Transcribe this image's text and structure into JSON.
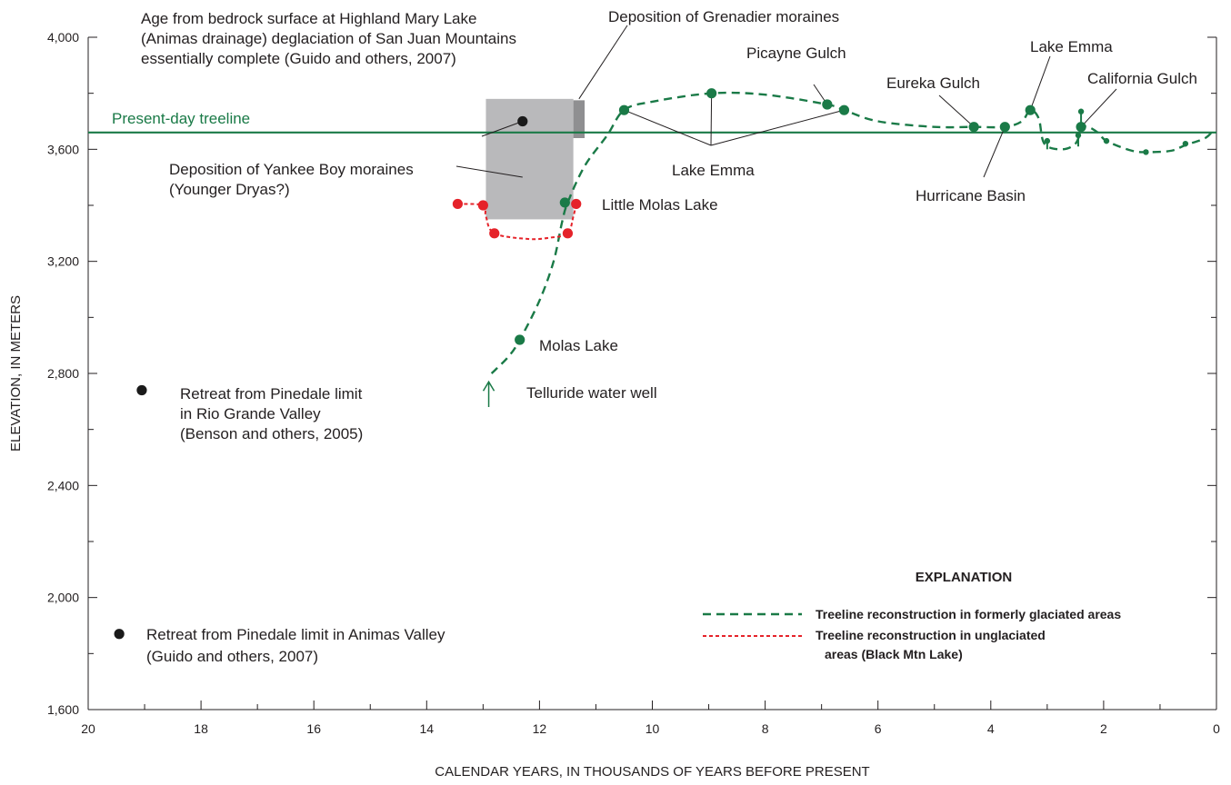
{
  "chart_data": {
    "type": "line",
    "xlabel": "CALENDAR YEARS, IN THOUSANDS OF YEARS BEFORE PRESENT",
    "ylabel": "ELEVATION, IN METERS",
    "xlim": [
      20,
      0
    ],
    "ylim": [
      1600,
      4000
    ],
    "x_major_ticks": [
      "20",
      "18",
      "16",
      "14",
      "12",
      "10",
      "8",
      "6",
      "4",
      "2",
      "0"
    ],
    "y_major_ticks": [
      "1,600",
      "2,000",
      "2,400",
      "2,800",
      "3,200",
      "3,600",
      "4,000"
    ],
    "colors": {
      "glaciated": "#1a7a47",
      "unglaciated": "#e5232a",
      "present_treeline": "#1a7a47",
      "box_light": "#b9b9bb",
      "box_dark": "#8f8f91",
      "marker_black": "#1a1a1a"
    },
    "present_treeline": {
      "y": 3660,
      "label": "Present-day treeline"
    },
    "series": [
      {
        "key": "glaciated",
        "line_points": [
          {
            "x": 12.85,
            "y": 2800
          },
          {
            "x": 12.55,
            "y": 2860
          },
          {
            "x": 12.35,
            "y": 2920
          },
          {
            "x": 12.0,
            "y": 3060
          },
          {
            "x": 11.75,
            "y": 3200
          },
          {
            "x": 11.6,
            "y": 3340
          },
          {
            "x": 11.5,
            "y": 3410
          },
          {
            "x": 11.2,
            "y": 3540
          },
          {
            "x": 10.8,
            "y": 3650
          },
          {
            "x": 10.5,
            "y": 3740
          },
          {
            "x": 10.0,
            "y": 3770
          },
          {
            "x": 8.95,
            "y": 3800
          },
          {
            "x": 8.0,
            "y": 3795
          },
          {
            "x": 6.9,
            "y": 3760
          },
          {
            "x": 6.6,
            "y": 3740
          },
          {
            "x": 6.0,
            "y": 3700
          },
          {
            "x": 5.0,
            "y": 3680
          },
          {
            "x": 4.3,
            "y": 3680
          },
          {
            "x": 3.75,
            "y": 3680
          },
          {
            "x": 3.45,
            "y": 3700
          },
          {
            "x": 3.3,
            "y": 3740
          },
          {
            "x": 3.15,
            "y": 3710
          },
          {
            "x": 3.05,
            "y": 3620
          },
          {
            "x": 2.75,
            "y": 3600
          },
          {
            "x": 2.5,
            "y": 3620
          },
          {
            "x": 2.35,
            "y": 3680
          },
          {
            "x": 2.1,
            "y": 3660
          },
          {
            "x": 1.95,
            "y": 3630
          },
          {
            "x": 1.5,
            "y": 3595
          },
          {
            "x": 1.2,
            "y": 3590
          },
          {
            "x": 0.8,
            "y": 3595
          },
          {
            "x": 0.55,
            "y": 3615
          },
          {
            "x": 0.2,
            "y": 3640
          },
          {
            "x": 0.05,
            "y": 3670
          }
        ],
        "sites": [
          {
            "name": "Molas Lake",
            "x": 12.35,
            "y": 2920
          },
          {
            "name": "Little Molas Lake",
            "x": 11.55,
            "y": 3410
          },
          {
            "name": "Lake Emma",
            "x": 10.5,
            "y": 3740
          },
          {
            "name": "Lake Emma",
            "x": 8.95,
            "y": 3800
          },
          {
            "name": "Picayne Gulch",
            "x": 6.9,
            "y": 3760
          },
          {
            "name": "Lake Emma",
            "x": 6.6,
            "y": 3740
          },
          {
            "name": "Eureka Gulch",
            "x": 4.3,
            "y": 3680
          },
          {
            "name": "Hurricane Basin",
            "x": 3.75,
            "y": 3680
          },
          {
            "name": "Lake Emma",
            "x": 3.3,
            "y": 3740
          },
          {
            "name": "California Gulch",
            "x": 2.4,
            "y": 3680
          }
        ],
        "small_points": [
          {
            "x": 3.0,
            "y": 3630,
            "lower": 3600
          },
          {
            "x": 2.45,
            "y": 3650,
            "lower": 3610
          },
          {
            "x": 2.4,
            "y": 3735,
            "lower": 3680
          },
          {
            "x": 1.95,
            "y": 3630,
            "lower": 3620
          },
          {
            "x": 1.25,
            "y": 3590,
            "lower": 3580
          },
          {
            "x": 0.55,
            "y": 3620,
            "lower": 3610
          }
        ]
      },
      {
        "key": "unglaciated",
        "line_points": [
          {
            "x": 13.45,
            "y": 3405
          },
          {
            "x": 13.0,
            "y": 3400
          },
          {
            "x": 12.95,
            "y": 3360
          },
          {
            "x": 12.8,
            "y": 3300
          },
          {
            "x": 12.2,
            "y": 3280
          },
          {
            "x": 11.8,
            "y": 3285
          },
          {
            "x": 11.5,
            "y": 3300
          },
          {
            "x": 11.4,
            "y": 3360
          },
          {
            "x": 11.35,
            "y": 3405
          }
        ],
        "sites": [
          {
            "x": 13.45,
            "y": 3405
          },
          {
            "x": 13.0,
            "y": 3400
          },
          {
            "x": 12.8,
            "y": 3300
          },
          {
            "x": 11.5,
            "y": 3300
          },
          {
            "x": 11.35,
            "y": 3405
          }
        ]
      }
    ],
    "age_points": [
      {
        "x": 12.3,
        "y": 3700
      },
      {
        "x": 19.05,
        "y": 2740
      },
      {
        "x": 19.45,
        "y": 1870
      }
    ],
    "boxes": [
      {
        "x0": 12.95,
        "x1": 11.4,
        "y0": 3350,
        "y1": 3780,
        "shade": "light"
      },
      {
        "x0": 11.4,
        "x1": 11.2,
        "y0": 3640,
        "y1": 3775,
        "shade": "dark"
      }
    ],
    "telluride_arrow": {
      "x": 12.9,
      "y_from": 2680,
      "y_to": 2770
    },
    "annotations": {
      "highland_mary": [
        "Age from bedrock surface at Highland Mary Lake",
        "(Animas drainage) deglaciation of San Juan Mountains",
        "essentially complete (Guido and others, 2007)"
      ],
      "grenadier": "Deposition of Grenadier moraines",
      "yankee_boy": [
        "Deposition of Yankee Boy moraines",
        "(Younger Dryas?)"
      ],
      "rio_grande": [
        "Retreat from Pinedale limit",
        "in Rio Grande Valley",
        "(Benson and others, 2005)"
      ],
      "animas": [
        "Retreat from Pinedale limit in Animas Valley",
        "(Guido and others, 2007)"
      ],
      "telluride": "Telluride water well",
      "molas": "Molas Lake",
      "little_molas": "Little Molas Lake",
      "lake_emma_mid": "Lake Emma",
      "picayne": "Picayne Gulch",
      "eureka": "Eureka Gulch",
      "lake_emma_right": "Lake Emma",
      "california": "California Gulch",
      "hurricane": "Hurricane Basin"
    },
    "legend": {
      "title": "EXPLANATION",
      "entries": [
        {
          "key": "glaciated",
          "lines": [
            "Treeline reconstruction in formerly glaciated areas"
          ]
        },
        {
          "key": "unglaciated",
          "lines": [
            "Treeline reconstruction in unglaciated",
            "areas (Black Mtn Lake)"
          ]
        }
      ]
    }
  }
}
